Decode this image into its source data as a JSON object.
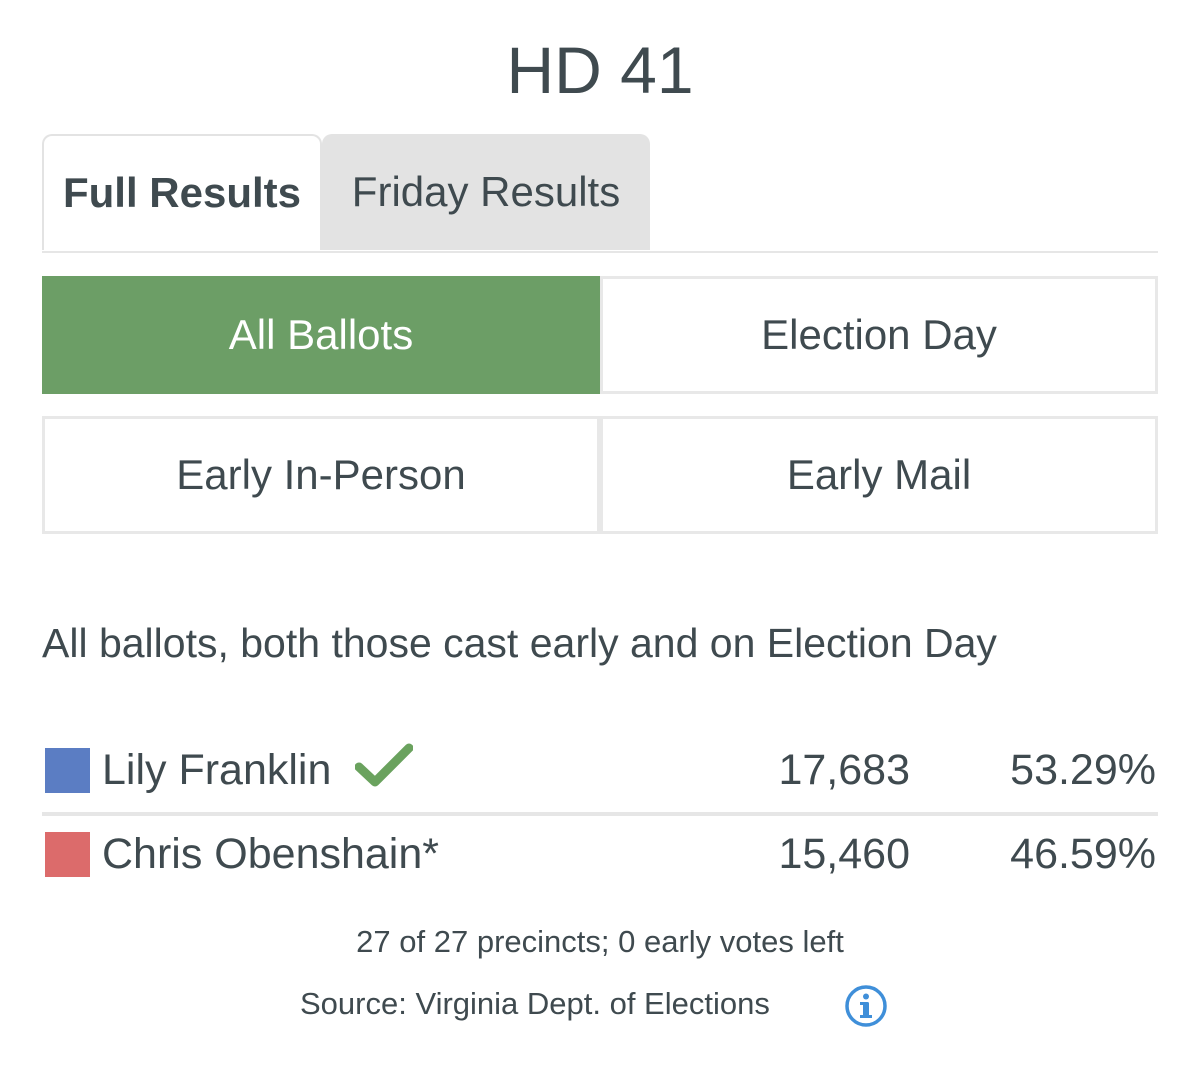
{
  "race": {
    "title": "HD 41"
  },
  "tabs": [
    {
      "label": "Full Results",
      "active": true
    },
    {
      "label": "Friday Results",
      "active": false
    }
  ],
  "ballot_filters": [
    {
      "label": "All Ballots",
      "selected": true
    },
    {
      "label": "Election Day",
      "selected": false
    },
    {
      "label": "Early In-Person",
      "selected": false
    },
    {
      "label": "Early Mail",
      "selected": false
    }
  ],
  "description": "All ballots, both those cast early and on Election Day",
  "candidates": [
    {
      "name": "Lily Franklin",
      "votes": "17,683",
      "percent": "53.29%",
      "color": "#5b7dc3",
      "winner": true,
      "winner_icon": "checkmark-icon"
    },
    {
      "name": "Chris Obenshain*",
      "votes": "15,460",
      "percent": "46.59%",
      "color": "#dc6b6b",
      "winner": false
    }
  ],
  "footer": {
    "precincts": "27 of 27 precincts; 0 early votes left",
    "source": "Source: Virginia Dept. of Elections",
    "info_icon": "info-icon"
  },
  "colors": {
    "accent_green": "#6c9e66",
    "check_green": "#6aa25e",
    "info_blue": "#3f8fd9"
  }
}
